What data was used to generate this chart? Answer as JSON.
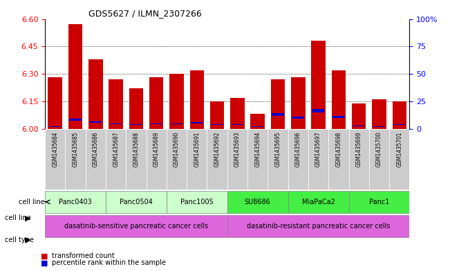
{
  "title": "GDS5627 / ILMN_2307266",
  "samples": [
    "GSM1435684",
    "GSM1435685",
    "GSM1435686",
    "GSM1435687",
    "GSM1435688",
    "GSM1435689",
    "GSM1435690",
    "GSM1435691",
    "GSM1435692",
    "GSM1435693",
    "GSM1435694",
    "GSM1435695",
    "GSM1435696",
    "GSM1435697",
    "GSM1435698",
    "GSM1435699",
    "GSM1435700",
    "GSM1435701"
  ],
  "transformed_count": [
    6.28,
    6.57,
    6.38,
    6.27,
    6.22,
    6.28,
    6.3,
    6.32,
    6.15,
    6.17,
    6.08,
    6.27,
    6.28,
    6.48,
    6.32,
    6.14,
    6.16,
    6.15
  ],
  "percentile_rank": [
    2,
    9,
    7,
    5,
    4,
    5,
    5,
    6,
    4,
    4,
    2,
    14,
    11,
    18,
    12,
    3,
    2,
    4
  ],
  "y_min": 6.0,
  "y_max": 6.6,
  "yticks_left": [
    6.0,
    6.15,
    6.3,
    6.45,
    6.6
  ],
  "yticks_right": [
    0,
    25,
    50,
    75,
    100
  ],
  "bar_color": "#cc0000",
  "percentile_color": "#0000cc",
  "cell_lines": [
    {
      "label": "Panc0403",
      "start": 0,
      "end": 3,
      "color": "#ccffcc"
    },
    {
      "label": "Panc0504",
      "start": 3,
      "end": 6,
      "color": "#ccffcc"
    },
    {
      "label": "Panc1005",
      "start": 6,
      "end": 9,
      "color": "#ccffcc"
    },
    {
      "label": "SU8686",
      "start": 9,
      "end": 12,
      "color": "#44ee44"
    },
    {
      "label": "MiaPaCa2",
      "start": 12,
      "end": 15,
      "color": "#44ee44"
    },
    {
      "label": "Panc1",
      "start": 15,
      "end": 18,
      "color": "#44ee44"
    }
  ],
  "cell_types": [
    {
      "label": "dasatinib-sensitive pancreatic cancer cells",
      "start": 0,
      "end": 9,
      "color": "#dd66dd"
    },
    {
      "label": "dasatinib-resistant pancreatic cancer cells",
      "start": 9,
      "end": 18,
      "color": "#dd66dd"
    }
  ],
  "xlabel_color": "#888888",
  "xlabel_bg": "#cccccc",
  "legend_tc_color": "#cc0000",
  "legend_pct_color": "#0000cc"
}
